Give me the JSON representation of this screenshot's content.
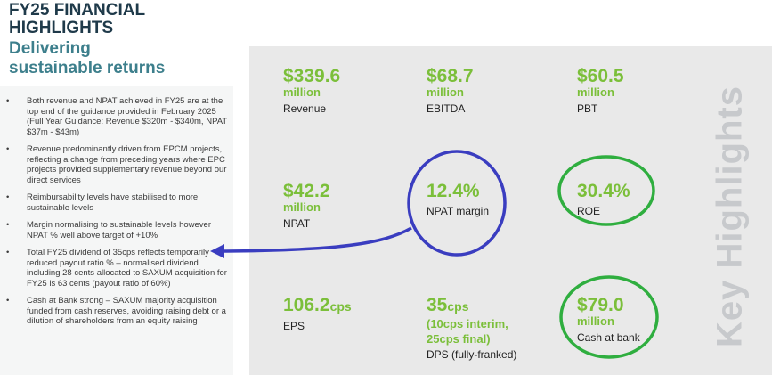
{
  "header": {
    "title_line1": "FY25 FINANCIAL",
    "title_line2": "HIGHLIGHTS",
    "subtitle_line1": "Delivering",
    "subtitle_line2": "sustainable returns"
  },
  "bullets": [
    "Both revenue and NPAT achieved in FY25 are at the top end of the guidance provided in February 2025 (Full Year Guidance: Revenue $320m - $340m, NPAT $37m - $43m)",
    "Revenue predominantly driven from EPCM projects, reflecting a change from preceding years where EPC projects provided supplementary revenue beyond our direct services",
    "Reimbursability levels have stabilised to more sustainable levels",
    "Margin normalising to sustainable levels however NPAT % well above target of +10%",
    "Total FY25 dividend of 35cps reflects temporarily reduced payout ratio % – normalised dividend including 28 cents allocated to SAXUM acquisition for FY25 is 63 cents (payout ratio of 60%)",
    "Cash at Bank strong – SAXUM majority acquisition funded from cash reserves, avoiding raising debt or a dilution of shareholders from an equity raising"
  ],
  "bullet_symbol": "•",
  "kpis": {
    "revenue": {
      "value": "$339.6",
      "unit": "million",
      "label": "Revenue"
    },
    "ebitda": {
      "value": "$68.7",
      "unit": "million",
      "label": "EBITDA"
    },
    "pbt": {
      "value": "$60.5",
      "unit": "million",
      "label": "PBT"
    },
    "npat": {
      "value": "$42.2",
      "unit": "million",
      "label": "NPAT"
    },
    "npat_margin": {
      "value": "12.4%",
      "label": "NPAT margin"
    },
    "roe": {
      "value": "30.4%",
      "label": "ROE"
    },
    "eps": {
      "value": "106.2",
      "suffix": "cps",
      "label": "EPS"
    },
    "dps": {
      "value": "35",
      "suffix": "cps",
      "detail1": "(10cps interim,",
      "detail2": "25cps final)",
      "label": "DPS (fully-franked)"
    },
    "cash": {
      "value": "$79.0",
      "unit": "million",
      "label": "Cash at bank"
    }
  },
  "side_label": "Key Highlights",
  "colors": {
    "title": "#1f3a4a",
    "subtitle": "#3d7f8c",
    "kpi_green": "#7bbf3a",
    "panel_grey": "#e9e9e9",
    "annotation_blue": "#3a3dc0",
    "annotation_green": "#2fae3f"
  }
}
